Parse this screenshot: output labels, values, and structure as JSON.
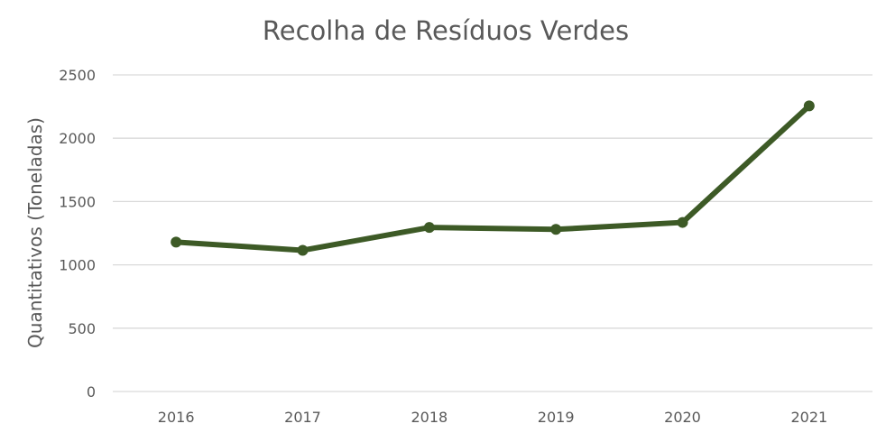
{
  "chart_data": {
    "type": "line",
    "title": "Recolha de Resíduos Verdes",
    "xlabel": "",
    "ylabel": "Quantitativos (Toneladas)",
    "categories": [
      "2016",
      "2017",
      "2018",
      "2019",
      "2020",
      "2021"
    ],
    "series": [
      {
        "values": [
          1180,
          1115,
          1295,
          1280,
          1335,
          2255
        ],
        "color": "#3d5a26"
      }
    ],
    "ylim": [
      0,
      2500
    ],
    "yticks": [
      0,
      500,
      1000,
      1500,
      2000,
      2500
    ],
    "grid": true,
    "legend": "none"
  }
}
